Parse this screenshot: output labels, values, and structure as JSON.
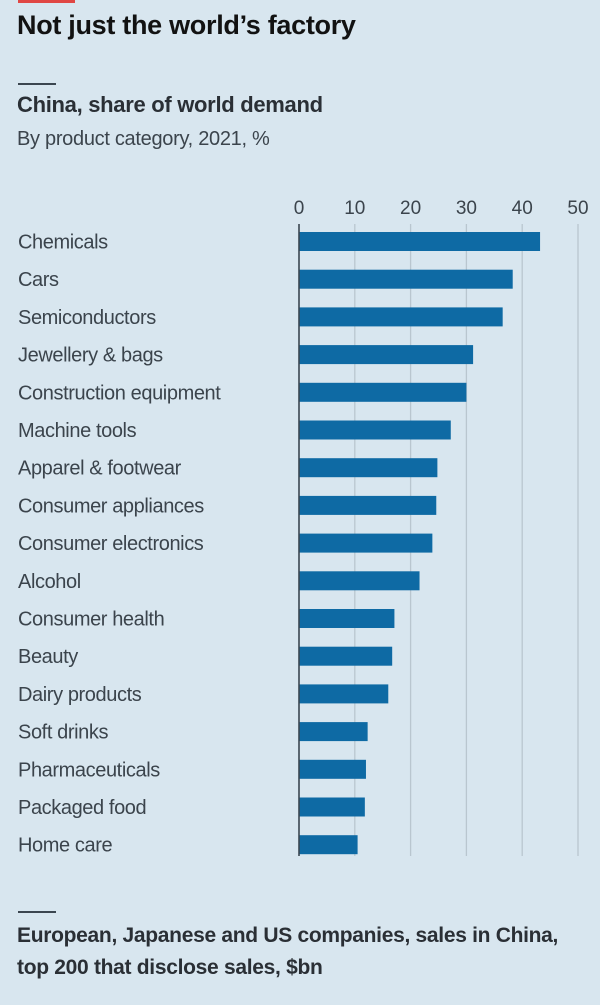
{
  "header": {
    "title": "Not just the world’s factory"
  },
  "chart_data": {
    "type": "bar",
    "orientation": "horizontal",
    "title": "China, share of world demand",
    "subtitle": "By product category, 2021, %",
    "xlabel": "",
    "ylabel": "",
    "xlim": [
      0,
      50
    ],
    "ticks": [
      0,
      10,
      20,
      30,
      40,
      50
    ],
    "tick_labels": [
      "0",
      "10",
      "20",
      "30",
      "40",
      "50"
    ],
    "grid": true,
    "bar_color": "#0e6aa4",
    "categories": [
      "Chemicals",
      "Cars",
      "Semiconductors",
      "Jewellery & bags",
      "Construction equipment",
      "Machine tools",
      "Apparel & footwear",
      "Consumer appliances",
      "Consumer electronics",
      "Alcohol",
      "Consumer health",
      "Beauty",
      "Dairy products",
      "Soft drinks",
      "Pharmaceuticals",
      "Packaged food",
      "Home care"
    ],
    "values": [
      43.2,
      38.3,
      36.5,
      31.2,
      30.0,
      27.2,
      24.8,
      24.6,
      23.9,
      21.6,
      17.1,
      16.7,
      16.0,
      12.3,
      12.0,
      11.8,
      10.5
    ]
  },
  "footer": {
    "next_chart_title": "European, Japanese and US companies, sales in China, top 200 that disclose sales, $bn"
  }
}
